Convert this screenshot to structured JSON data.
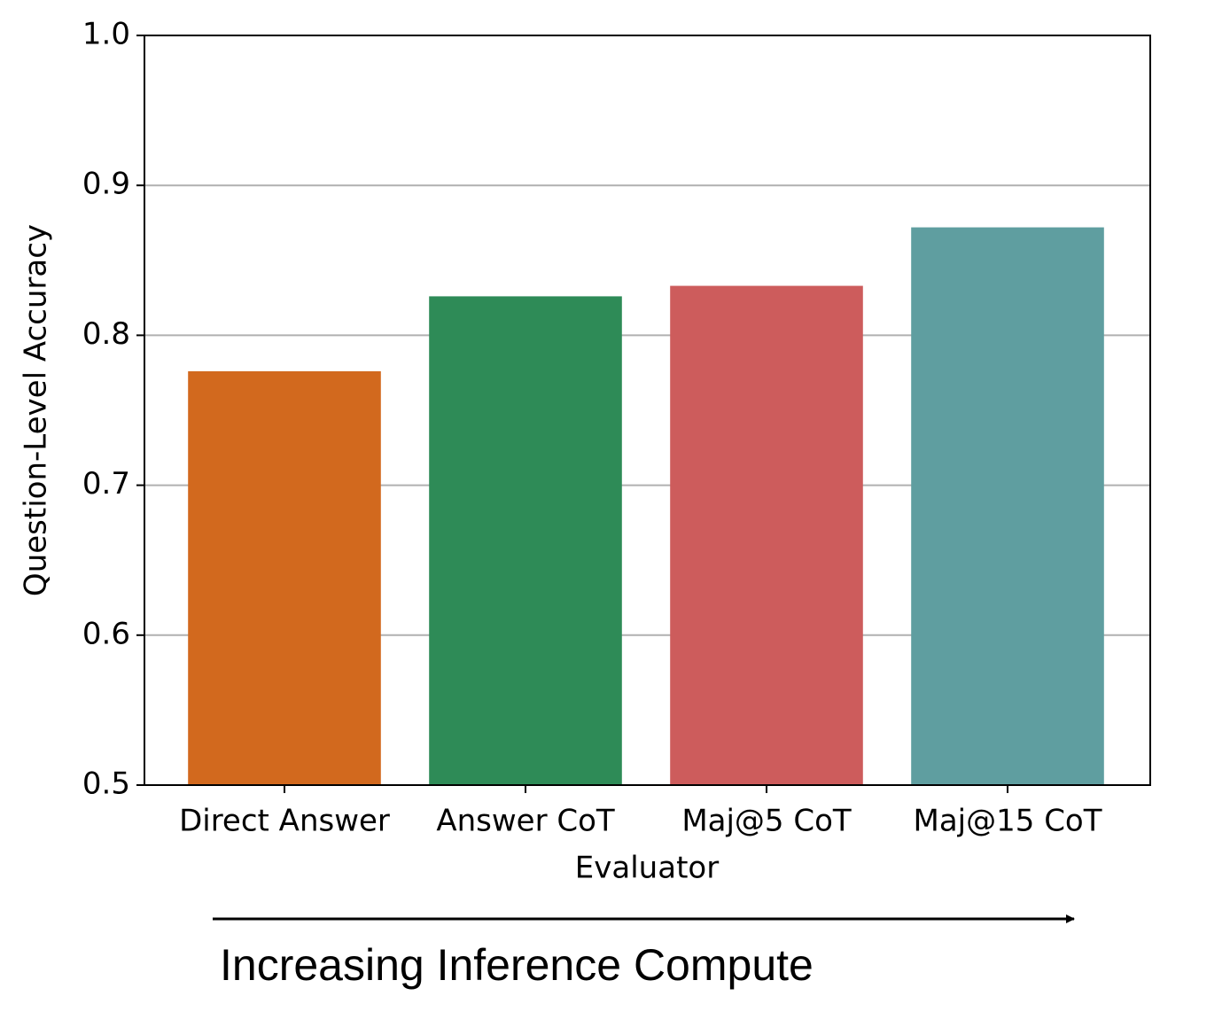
{
  "chart_data": {
    "type": "bar",
    "ylabel": "Question-Level Accuracy",
    "xlabel": "Evaluator",
    "annotation": "Increasing Inference Compute",
    "categories": [
      "Direct Answer",
      "Answer CoT",
      "Maj@5 CoT",
      "Maj@15 CoT"
    ],
    "values": [
      0.776,
      0.826,
      0.833,
      0.872
    ],
    "colors": [
      "#d2691e",
      "#2e8b57",
      "#cd5c5c",
      "#5f9ea0"
    ],
    "ylim": [
      0.5,
      1.0
    ],
    "yticks": [
      0.5,
      0.6,
      0.7,
      0.8,
      0.9,
      {
        "value": 1.0,
        "label": "1.0"
      }
    ],
    "grid": true
  }
}
